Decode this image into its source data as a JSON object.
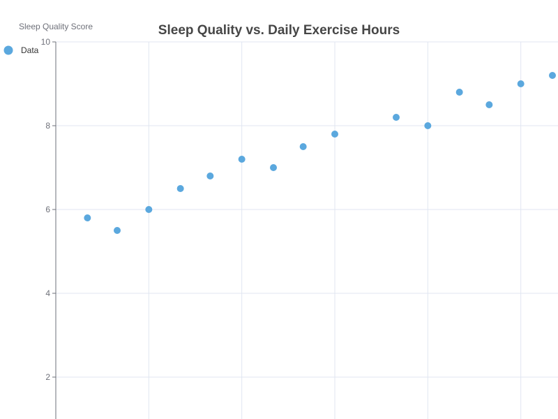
{
  "chart_data": {
    "type": "scatter",
    "title": "Sleep Quality vs. Daily Exercise Hours",
    "xlabel": "",
    "ylabel": "Sleep Quality Score",
    "legend": [
      "Data"
    ],
    "legend_position": "top-left",
    "grid": true,
    "color": "#5ba8de",
    "ylim": [
      0,
      10
    ],
    "yticks": [
      2,
      4,
      6,
      8,
      10
    ],
    "xgrid": [
      0.5,
      1.0,
      1.5,
      2.0,
      2.5
    ],
    "xlim": [
      0,
      2.7
    ],
    "series": [
      {
        "name": "Data",
        "points": [
          {
            "x": 0.17,
            "y": 5.8
          },
          {
            "x": 0.33,
            "y": 5.5
          },
          {
            "x": 0.5,
            "y": 6.0
          },
          {
            "x": 0.67,
            "y": 6.5
          },
          {
            "x": 0.83,
            "y": 6.8
          },
          {
            "x": 1.0,
            "y": 7.2
          },
          {
            "x": 1.17,
            "y": 7.0
          },
          {
            "x": 1.33,
            "y": 7.5
          },
          {
            "x": 1.5,
            "y": 7.8
          },
          {
            "x": 1.83,
            "y": 8.2
          },
          {
            "x": 2.0,
            "y": 8.0
          },
          {
            "x": 2.17,
            "y": 8.8
          },
          {
            "x": 2.33,
            "y": 8.5
          },
          {
            "x": 2.5,
            "y": 9.0
          },
          {
            "x": 2.67,
            "y": 9.2
          }
        ]
      }
    ]
  }
}
